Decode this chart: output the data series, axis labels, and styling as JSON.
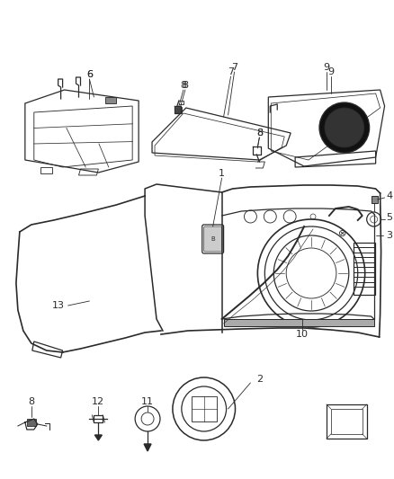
{
  "bg_color": "#ffffff",
  "fig_width": 4.38,
  "fig_height": 5.33,
  "dpi": 100,
  "lc": "#2a2a2a",
  "lw": 0.9
}
